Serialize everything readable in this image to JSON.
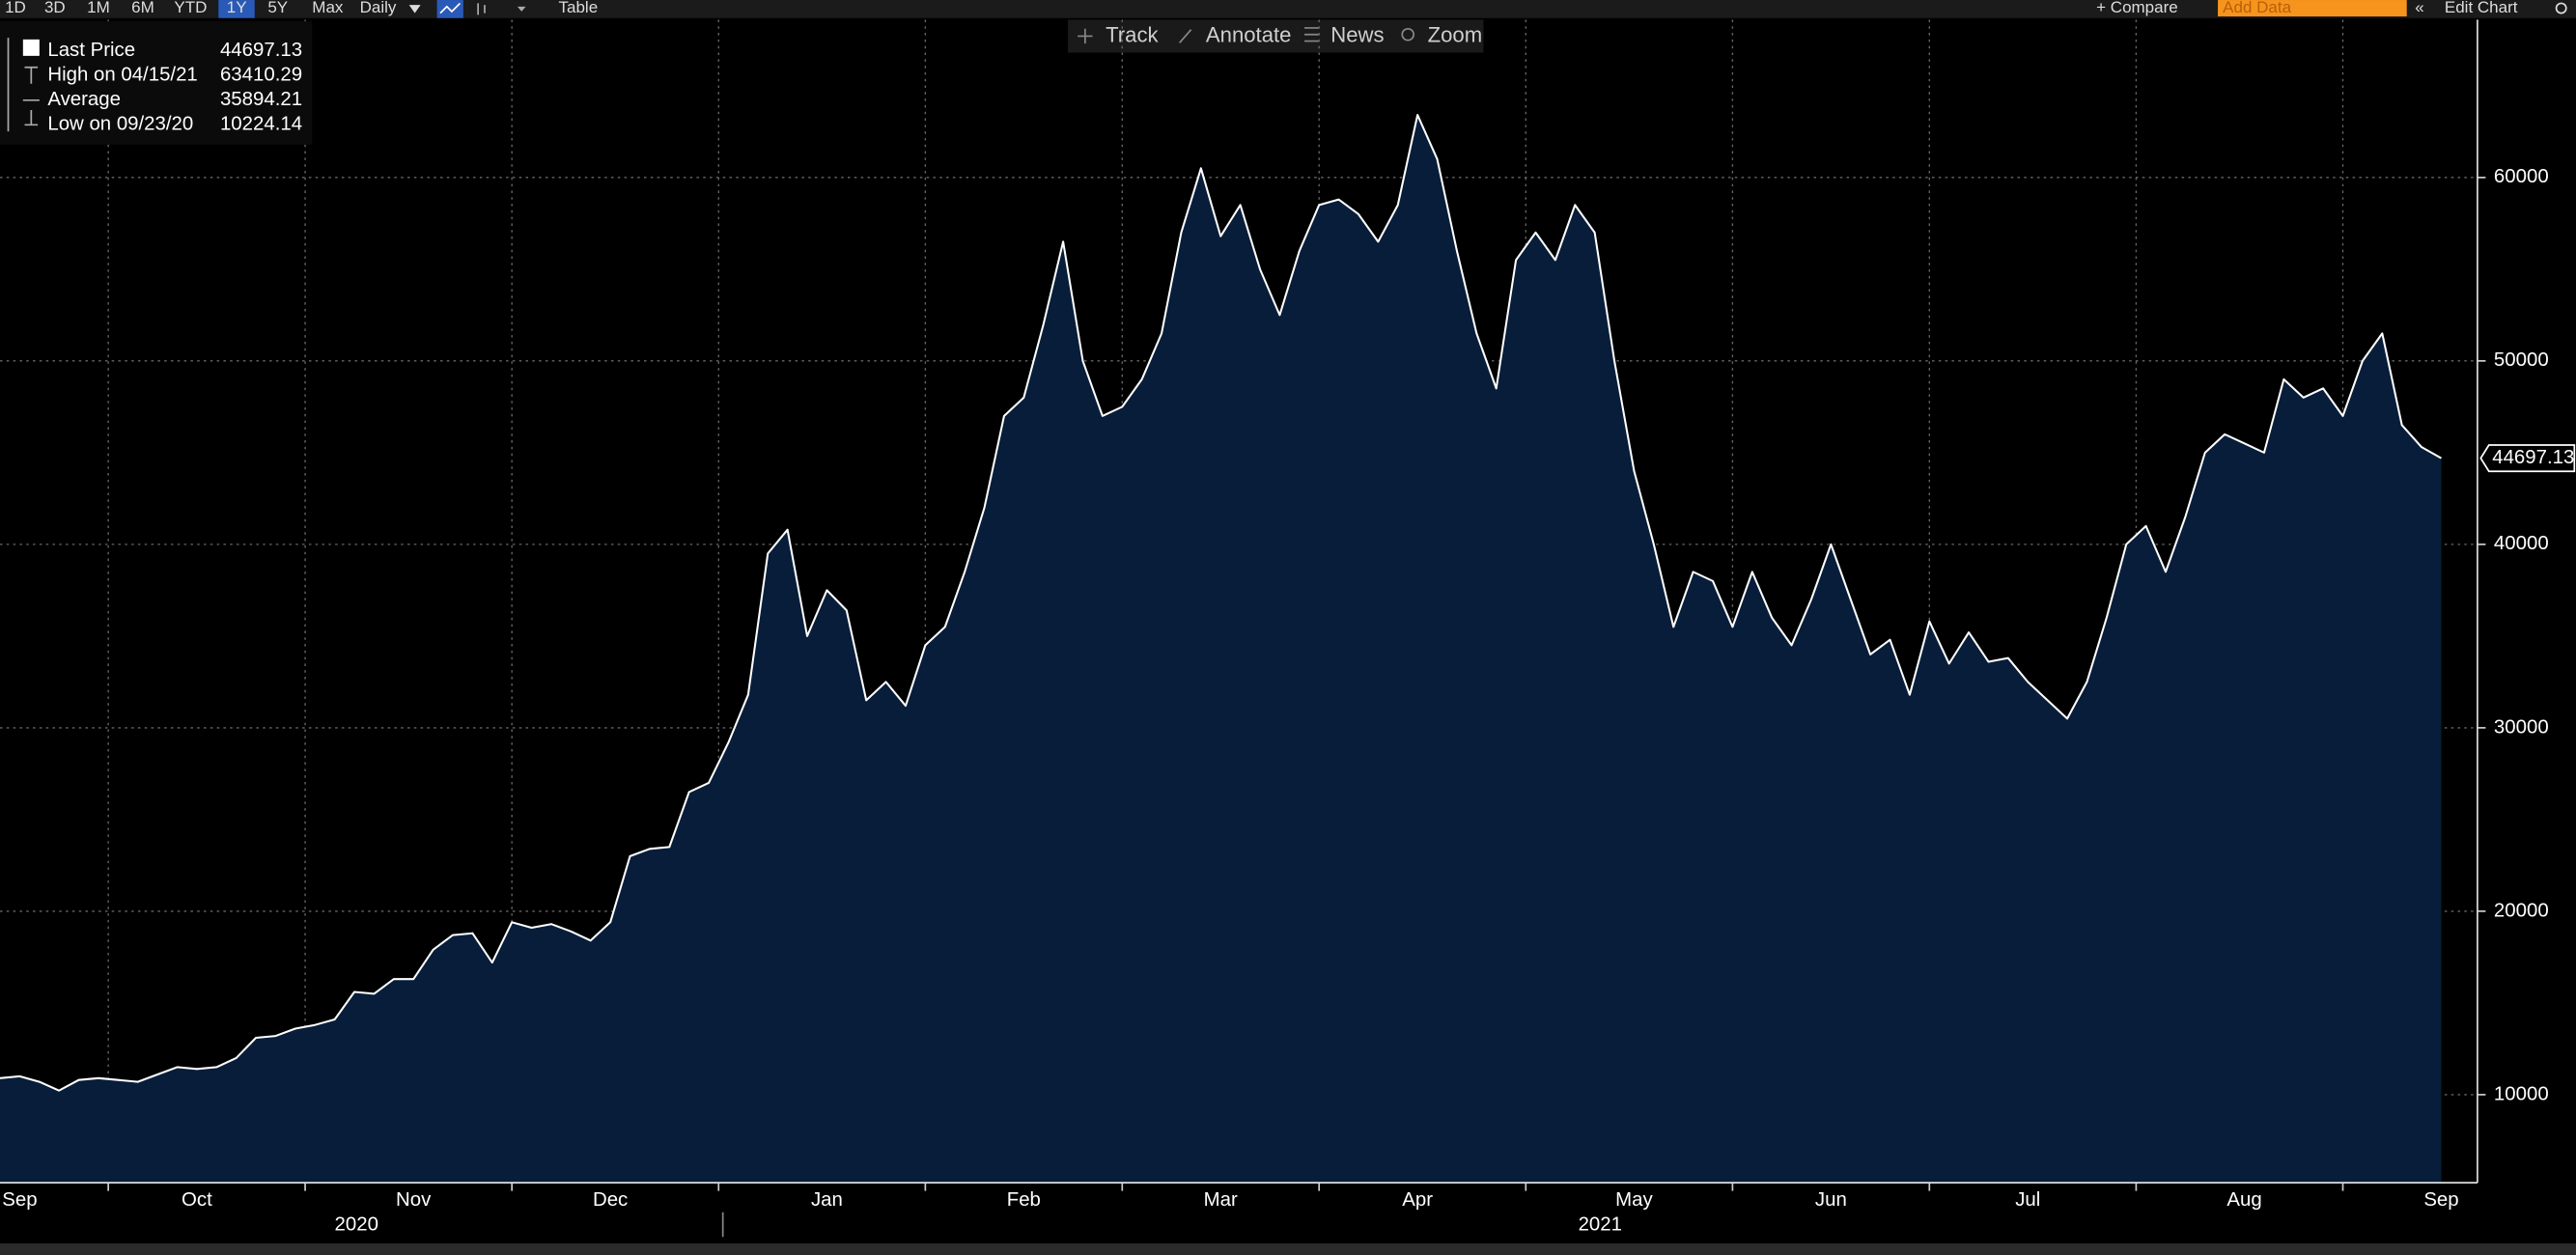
{
  "toolbar": {
    "ranges": [
      "1D",
      "3D",
      "1M",
      "6M",
      "YTD",
      "1Y",
      "5Y",
      "Max"
    ],
    "frequency": "Daily",
    "table": "Table",
    "compare": "+ Compare",
    "add_data": "Add Data",
    "edit_chart": "Edit Chart"
  },
  "chart_tools": [
    "Track",
    "Annotate",
    "News",
    "Zoom"
  ],
  "summary": [
    {
      "label": "Last Price",
      "value": 44697.13
    },
    {
      "label": "High on 04/15/21",
      "value": 63410.29
    },
    {
      "label": "Average",
      "value": 35894.21
    },
    {
      "label": "Low on 09/23/20",
      "value": 10224.14
    }
  ],
  "chart_data": {
    "type": "area",
    "color": "#071d3a",
    "line_color": "#ffffff",
    "grid": true,
    "x_groups": [
      "2020",
      "2021"
    ],
    "categories": [
      null,
      "Sep",
      null,
      null,
      null,
      null,
      null,
      null,
      null,
      null,
      "Oct",
      null,
      null,
      null,
      null,
      null,
      null,
      null,
      null,
      null,
      null,
      "Nov",
      null,
      null,
      null,
      null,
      null,
      null,
      null,
      null,
      null,
      "Dec",
      null,
      null,
      null,
      null,
      null,
      null,
      null,
      null,
      null,
      null,
      "Jan",
      null,
      null,
      null,
      null,
      null,
      null,
      null,
      null,
      null,
      "Feb",
      null,
      null,
      null,
      null,
      null,
      null,
      null,
      null,
      null,
      "Mar",
      null,
      null,
      null,
      null,
      null,
      null,
      null,
      null,
      null,
      "Apr",
      null,
      null,
      null,
      null,
      null,
      null,
      null,
      null,
      null,
      null,
      "May",
      null,
      null,
      null,
      null,
      null,
      null,
      null,
      null,
      null,
      "Jun",
      null,
      null,
      null,
      null,
      null,
      null,
      null,
      null,
      null,
      "Jul",
      null,
      null,
      null,
      null,
      null,
      null,
      null,
      null,
      null,
      null,
      "Aug",
      null,
      null,
      null,
      null,
      null,
      null,
      null,
      null,
      null,
      "Sep"
    ],
    "values": [
      10900,
      11000,
      10700,
      10224.14,
      10800,
      10900,
      10800,
      10700,
      11100,
      11500,
      11400,
      11500,
      12000,
      13100,
      13200,
      13600,
      13800,
      14100,
      15600,
      15500,
      16300,
      16300,
      17900,
      18700,
      18800,
      17200,
      19400,
      19100,
      19300,
      18900,
      18400,
      19400,
      23000,
      23400,
      23500,
      26500,
      27000,
      29200,
      31800,
      39500,
      40800,
      35000,
      37500,
      36400,
      31500,
      32500,
      31200,
      34500,
      35500,
      38500,
      42000,
      47000,
      48000,
      52000,
      56500,
      50000,
      47000,
      47500,
      49000,
      51500,
      57000,
      60500,
      56800,
      58500,
      55000,
      52500,
      56000,
      58500,
      58800,
      58000,
      56500,
      58500,
      63410.29,
      61000,
      56000,
      51500,
      48500,
      55500,
      57000,
      55500,
      58500,
      57000,
      50000,
      44000,
      40000,
      35500,
      38500,
      38000,
      35500,
      38500,
      36000,
      34500,
      37000,
      40000,
      37000,
      34000,
      34800,
      31800,
      35800,
      33500,
      35200,
      33600,
      33800,
      32500,
      31500,
      30500,
      32500,
      36000,
      40000,
      41000,
      38500,
      41500,
      45000,
      46000,
      45500,
      45000,
      49000,
      48000,
      48500,
      47000,
      50000,
      51500,
      46500,
      45300,
      44697.13
    ],
    "ylim": [
      5200,
      68600
    ],
    "yticks": [
      10000,
      20000,
      30000,
      40000,
      50000,
      60000
    ]
  }
}
